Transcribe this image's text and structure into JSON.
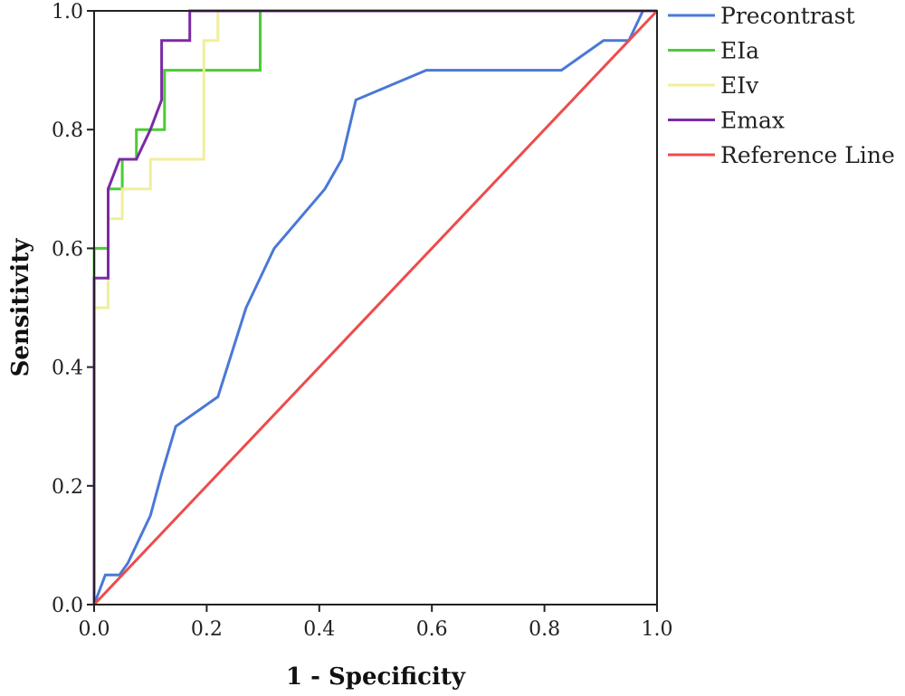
{
  "chart_data": {
    "type": "line",
    "title": "",
    "xlabel": "1 - Specificity",
    "ylabel": "Sensitivity",
    "xlim": [
      0,
      1
    ],
    "ylim": [
      0,
      1
    ],
    "x_ticks": [
      "0.0",
      "0.2",
      "0.4",
      "0.6",
      "0.8",
      "1.0"
    ],
    "y_ticks": [
      "0.0",
      "0.2",
      "0.4",
      "0.6",
      "0.8",
      "1.0"
    ],
    "grid": false,
    "legend_position": "right",
    "series": [
      {
        "name": "Precontrast",
        "color": "#4a78d6",
        "x": [
          0,
          0.02,
          0.045,
          0.06,
          0.1,
          0.12,
          0.145,
          0.22,
          0.27,
          0.32,
          0.41,
          0.44,
          0.465,
          0.59,
          0.83,
          0.905,
          0.95,
          0.975
        ],
        "y": [
          0,
          0.05,
          0.05,
          0.07,
          0.15,
          0.22,
          0.3,
          0.35,
          0.5,
          0.6,
          0.7,
          0.75,
          0.85,
          0.9,
          0.9,
          0.95,
          0.95,
          1.0
        ]
      },
      {
        "name": "EIa",
        "color": "#4ccc33",
        "x": [
          0,
          0,
          0.025,
          0.025,
          0.05,
          0.05,
          0.075,
          0.075,
          0.125,
          0.125,
          0.295,
          0.295,
          1.0
        ],
        "y": [
          0,
          0.6,
          0.6,
          0.7,
          0.7,
          0.75,
          0.75,
          0.8,
          0.8,
          0.9,
          0.9,
          1.0,
          1.0
        ]
      },
      {
        "name": "EIv",
        "color": "#f0ef9a",
        "x": [
          0,
          0,
          0.025,
          0.025,
          0.05,
          0.05,
          0.1,
          0.1,
          0.195,
          0.195,
          0.205,
          0.205,
          0.22,
          0.22,
          1.0
        ],
        "y": [
          0,
          0.5,
          0.5,
          0.65,
          0.65,
          0.7,
          0.7,
          0.75,
          0.75,
          0.95,
          0.95,
          0.95,
          0.95,
          1.0,
          1.0
        ]
      },
      {
        "name": "Emax",
        "color": "#7b2aa5",
        "x": [
          0,
          0,
          0.025,
          0.025,
          0.045,
          0.075,
          0.1,
          0.12,
          0.12,
          0.17,
          0.17,
          1.0
        ],
        "y": [
          0,
          0.55,
          0.55,
          0.7,
          0.75,
          0.75,
          0.8,
          0.85,
          0.95,
          0.95,
          1.0,
          1.0
        ]
      },
      {
        "name": "Reference Line",
        "color": "#ee4b4b",
        "x": [
          0,
          1
        ],
        "y": [
          0,
          1
        ]
      }
    ]
  }
}
